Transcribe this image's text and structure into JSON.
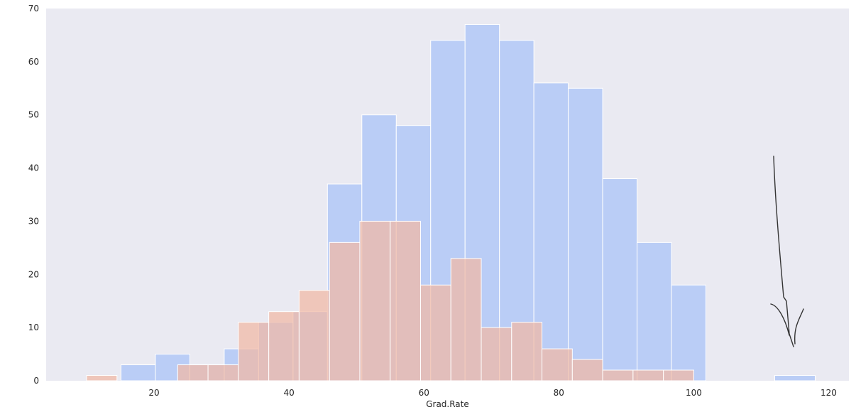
{
  "chart_data": {
    "type": "histogram",
    "title": "",
    "xlabel": "Grad.Rate",
    "ylabel": "",
    "xlim": [
      4,
      123
    ],
    "ylim": [
      0,
      70
    ],
    "xticks": [
      20,
      40,
      60,
      80,
      100,
      120
    ],
    "yticks": [
      0,
      10,
      20,
      30,
      40,
      50,
      60,
      70
    ],
    "grid": false,
    "background": "#eaeaf2",
    "series": [
      {
        "color": "#a8c2f7",
        "opacity": 0.72,
        "bins": [
          {
            "x0": 10.0,
            "x1": 15.1,
            "count": 0
          },
          {
            "x0": 15.1,
            "x1": 20.2,
            "count": 3
          },
          {
            "x0": 20.2,
            "x1": 25.3,
            "count": 5
          },
          {
            "x0": 25.3,
            "x1": 30.4,
            "count": 3
          },
          {
            "x0": 30.4,
            "x1": 35.5,
            "count": 6
          },
          {
            "x0": 35.5,
            "x1": 40.6,
            "count": 11
          },
          {
            "x0": 40.6,
            "x1": 45.7,
            "count": 13
          },
          {
            "x0": 45.7,
            "x1": 50.8,
            "count": 37
          },
          {
            "x0": 50.8,
            "x1": 55.9,
            "count": 50
          },
          {
            "x0": 55.9,
            "x1": 61.0,
            "count": 48
          },
          {
            "x0": 61.0,
            "x1": 66.1,
            "count": 64
          },
          {
            "x0": 66.1,
            "x1": 71.2,
            "count": 67
          },
          {
            "x0": 71.2,
            "x1": 76.3,
            "count": 64
          },
          {
            "x0": 76.3,
            "x1": 81.4,
            "count": 56
          },
          {
            "x0": 81.4,
            "x1": 86.5,
            "count": 55
          },
          {
            "x0": 86.5,
            "x1": 91.6,
            "count": 38
          },
          {
            "x0": 91.6,
            "x1": 96.7,
            "count": 26
          },
          {
            "x0": 96.7,
            "x1": 101.8,
            "count": 18
          },
          {
            "x0": 101.8,
            "x1": 106.9,
            "count": 0
          },
          {
            "x0": 106.9,
            "x1": 112.0,
            "count": 0
          },
          {
            "x0": 112.0,
            "x1": 118.0,
            "count": 1
          }
        ]
      },
      {
        "color": "#f1b9a3",
        "opacity": 0.72,
        "bins": [
          {
            "x0": 10.0,
            "x1": 14.5,
            "count": 1
          },
          {
            "x0": 14.5,
            "x1": 19.0,
            "count": 0
          },
          {
            "x0": 19.0,
            "x1": 23.5,
            "count": 0
          },
          {
            "x0": 23.5,
            "x1": 28.0,
            "count": 3
          },
          {
            "x0": 28.0,
            "x1": 32.5,
            "count": 3
          },
          {
            "x0": 32.5,
            "x1": 37.0,
            "count": 11
          },
          {
            "x0": 37.0,
            "x1": 41.5,
            "count": 13
          },
          {
            "x0": 41.5,
            "x1": 46.0,
            "count": 17
          },
          {
            "x0": 46.0,
            "x1": 50.5,
            "count": 26
          },
          {
            "x0": 50.5,
            "x1": 55.0,
            "count": 30
          },
          {
            "x0": 55.0,
            "x1": 59.5,
            "count": 30
          },
          {
            "x0": 59.5,
            "x1": 64.0,
            "count": 18
          },
          {
            "x0": 64.0,
            "x1": 68.5,
            "count": 23
          },
          {
            "x0": 68.5,
            "x1": 73.0,
            "count": 10
          },
          {
            "x0": 73.0,
            "x1": 77.5,
            "count": 11
          },
          {
            "x0": 77.5,
            "x1": 82.0,
            "count": 6
          },
          {
            "x0": 82.0,
            "x1": 86.5,
            "count": 4
          },
          {
            "x0": 86.5,
            "x1": 91.0,
            "count": 2
          },
          {
            "x0": 91.0,
            "x1": 95.5,
            "count": 2
          },
          {
            "x0": 95.5,
            "x1": 100.0,
            "count": 2
          }
        ]
      }
    ],
    "annotation": {
      "kind": "hand-drawn-arrow",
      "color": "#333333",
      "points_to": {
        "x": 115,
        "y": 1
      }
    }
  }
}
